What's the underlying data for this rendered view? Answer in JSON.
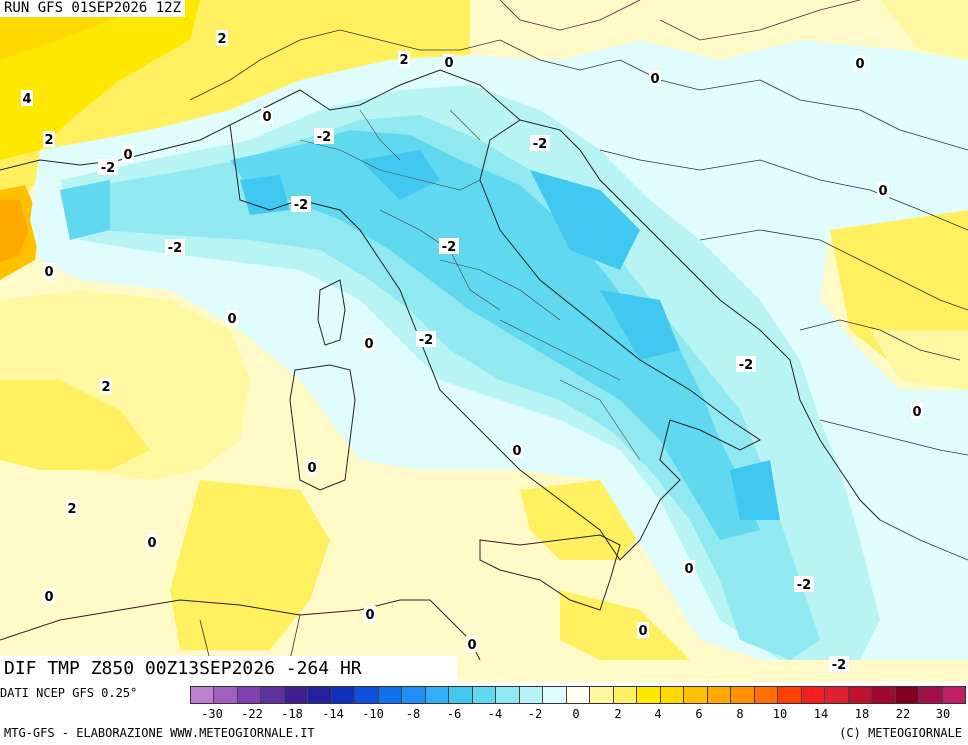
{
  "header": {
    "run_label": "RUN GFS 01SEP2026 12Z"
  },
  "variable_label": "DIF TMP Z850 00Z13SEP2026 -264 HR",
  "source_label": "DATI NCEP GFS 0.25°",
  "footer": {
    "left": "MTG-GFS - ELABORAZIONE WWW.METEOGIORNALE.IT",
    "right": "(C) METEOGIORNALE"
  },
  "legend": {
    "colors": [
      "#c07fd0",
      "#a060c0",
      "#8040b0",
      "#6030a0",
      "#402090",
      "#2020a0",
      "#1030c0",
      "#1050e0",
      "#1070f0",
      "#2090f8",
      "#30b0f8",
      "#40c8f0",
      "#60d8f0",
      "#90e8f0",
      "#b8f4f4",
      "#e0fcfc",
      "#fffff0",
      "#fff8a0",
      "#fff060",
      "#ffe800",
      "#ffd800",
      "#ffc000",
      "#ffa800",
      "#ff9000",
      "#ff7000",
      "#ff4000",
      "#f02020",
      "#e02030",
      "#c01030",
      "#a00830",
      "#800020",
      "#a0104a",
      "#c02060"
    ],
    "ticks": [
      "-30",
      "-22",
      "-18",
      "-14",
      "-10",
      "-8",
      "-6",
      "-4",
      "-2",
      "0",
      "2",
      "4",
      "6",
      "8",
      "10",
      "14",
      "18",
      "22",
      "30"
    ]
  },
  "contour_labels": [
    {
      "text": "2"
    },
    {
      "text": "2"
    },
    {
      "text": "0"
    },
    {
      "text": "0"
    },
    {
      "text": "0"
    },
    {
      "text": "4"
    },
    {
      "text": "2"
    },
    {
      "text": "0"
    },
    {
      "text": "-2"
    },
    {
      "text": "0"
    },
    {
      "text": "-2"
    },
    {
      "text": "-2"
    },
    {
      "text": "-2"
    },
    {
      "text": "0"
    },
    {
      "text": "-2"
    },
    {
      "text": "-2"
    },
    {
      "text": "0"
    },
    {
      "text": "0"
    },
    {
      "text": "0"
    },
    {
      "text": "-2"
    },
    {
      "text": "-2"
    },
    {
      "text": "2"
    },
    {
      "text": "0"
    },
    {
      "text": "0"
    },
    {
      "text": "0"
    },
    {
      "text": "2"
    },
    {
      "text": "0"
    },
    {
      "text": "0"
    },
    {
      "text": "0"
    },
    {
      "text": "0"
    },
    {
      "text": "-2"
    },
    {
      "text": "0"
    },
    {
      "text": "0"
    },
    {
      "text": "-2"
    }
  ]
}
